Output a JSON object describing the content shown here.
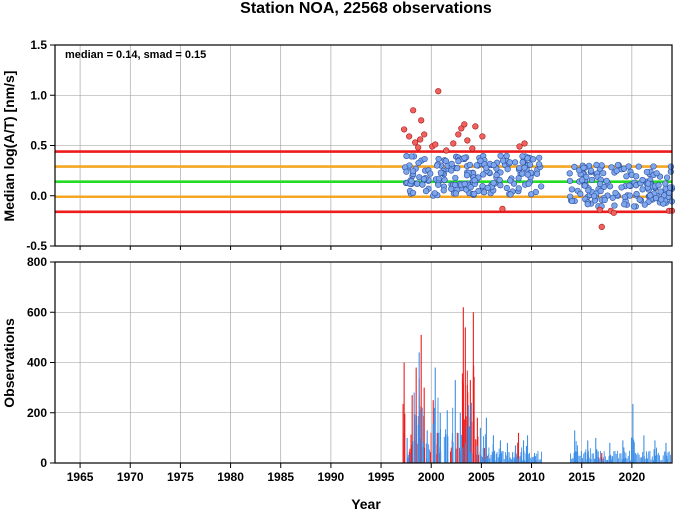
{
  "title": "Station NOA, 22568 observations",
  "annotation": "median = 0.14, smad = 0.15",
  "chart_data": [
    {
      "type": "scatter",
      "xlabel": "",
      "ylabel": "Median log(A/T) [nm/s]",
      "xlim": [
        1962.5,
        2024
      ],
      "ylim": [
        -0.5,
        1.5
      ],
      "y_ticks": [
        "1.5",
        "1.0",
        "0.5",
        "0.0",
        "-0.5"
      ],
      "y_tick_values": [
        1.5,
        1.0,
        0.5,
        0.0,
        -0.5
      ],
      "grid": true,
      "median": 0.14,
      "smad": 0.15,
      "reference_lines": [
        {
          "y": 0.44,
          "color": "#ee1c1c"
        },
        {
          "y": 0.29,
          "color": "#f5a623"
        },
        {
          "y": 0.14,
          "color": "#22dd22"
        },
        {
          "y": -0.01,
          "color": "#f5a623"
        },
        {
          "y": -0.16,
          "color": "#ee1c1c"
        }
      ],
      "colors": {
        "inlier_fill": "#7ea6ec",
        "inlier_edge": "#2a4fa0",
        "outlier_fill": "#f0605c",
        "outlier_edge": "#a01c1c"
      },
      "outliers": [
        [
          1997.3,
          0.66
        ],
        [
          1997.8,
          0.59
        ],
        [
          1998.2,
          0.85
        ],
        [
          1998.4,
          0.53
        ],
        [
          1998.7,
          0.48
        ],
        [
          1999.0,
          0.75
        ],
        [
          1998.9,
          0.56
        ],
        [
          1999.3,
          0.61
        ],
        [
          2000.1,
          0.49
        ],
        [
          2000.4,
          0.51
        ],
        [
          2000.7,
          1.04
        ],
        [
          2001.5,
          0.45
        ],
        [
          2002.2,
          0.52
        ],
        [
          2002.7,
          0.61
        ],
        [
          2003.0,
          0.67
        ],
        [
          2003.3,
          0.71
        ],
        [
          2003.6,
          0.55
        ],
        [
          2004.1,
          0.47
        ],
        [
          2004.4,
          0.69
        ],
        [
          2005.1,
          0.59
        ],
        [
          2008.8,
          0.49
        ],
        [
          2009.3,
          0.52
        ],
        [
          2007.1,
          -0.13
        ],
        [
          2016.8,
          -0.14
        ],
        [
          2017.0,
          -0.31
        ],
        [
          2017.9,
          -0.15
        ],
        [
          2018.2,
          -0.17
        ],
        [
          2023.7,
          -0.15
        ],
        [
          2024.0,
          -0.15
        ]
      ],
      "inliers_seed": 20240311,
      "inlier_count": 360
    },
    {
      "type": "bar",
      "xlabel": "Year",
      "ylabel": "Observations",
      "xlim": [
        1962.5,
        2024
      ],
      "ylim": [
        0,
        800
      ],
      "x_ticks": [
        "1965",
        "1970",
        "1975",
        "1980",
        "1985",
        "1990",
        "1995",
        "2000",
        "2005",
        "2010",
        "2015",
        "2020"
      ],
      "x_tick_values": [
        1965,
        1970,
        1975,
        1980,
        1985,
        1990,
        1995,
        2000,
        2005,
        2010,
        2015,
        2020
      ],
      "y_ticks": [
        "800",
        "600",
        "400",
        "200",
        "0"
      ],
      "y_tick_values": [
        800,
        600,
        400,
        200,
        0
      ],
      "grid": true,
      "series": [
        {
          "color": "#ee1c1c",
          "values": [
            [
              1997.3,
              400
            ],
            [
              1998.1,
              270
            ],
            [
              1998.5,
              380
            ],
            [
              1999.0,
              510
            ],
            [
              1999.3,
              300
            ],
            [
              2000.2,
              250
            ],
            [
              2000.6,
              120
            ],
            [
              2002.1,
              90
            ],
            [
              2002.6,
              120
            ],
            [
              2003.2,
              620
            ],
            [
              2003.4,
              540
            ],
            [
              2003.6,
              310
            ],
            [
              2003.9,
              330
            ],
            [
              2004.2,
              600
            ],
            [
              2004.6,
              180
            ],
            [
              2005.3,
              60
            ],
            [
              2008.7,
              120
            ],
            [
              2017.0,
              40
            ]
          ]
        },
        {
          "color": "#3d8fe8",
          "values": [
            [
              1997.6,
              100
            ],
            [
              1998.3,
              280
            ],
            [
              1998.8,
              440
            ],
            [
              1999.1,
              220
            ],
            [
              1999.6,
              130
            ],
            [
              2000.4,
              380
            ],
            [
              2000.9,
              200
            ],
            [
              2001.6,
              210
            ],
            [
              2002.4,
              330
            ],
            [
              2002.9,
              200
            ],
            [
              2003.7,
              230
            ],
            [
              2004.0,
              240
            ],
            [
              2004.9,
              140
            ],
            [
              2005.5,
              180
            ],
            [
              2006.2,
              110
            ],
            [
              2006.9,
              90
            ],
            [
              2007.6,
              80
            ],
            [
              2008.4,
              70
            ],
            [
              2009.2,
              90
            ],
            [
              2009.6,
              110
            ],
            [
              2010.3,
              40
            ],
            [
              2014.3,
              130
            ],
            [
              2015.6,
              90
            ],
            [
              2016.4,
              100
            ],
            [
              2017.8,
              80
            ],
            [
              2019.1,
              90
            ],
            [
              2020.1,
              235
            ],
            [
              2021.2,
              110
            ],
            [
              2022.3,
              90
            ],
            [
              2023.4,
              80
            ]
          ]
        }
      ]
    }
  ]
}
